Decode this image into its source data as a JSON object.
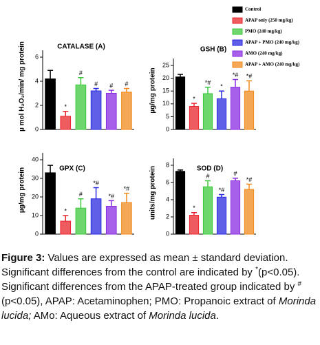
{
  "legend": [
    {
      "name": "Control",
      "color": "#000000"
    },
    {
      "name": "APAP only (250 mg/kg)",
      "color": "#e8262b"
    },
    {
      "name": "PMO (240 mg/kg)",
      "color": "#3cc83c"
    },
    {
      "name": "APAP + PMO (240 mg/kg)",
      "color": "#2a2ae0"
    },
    {
      "name": "AMO (240 mg/kg)",
      "color": "#8a2be2"
    },
    {
      "name": "APAP + AMO (240 mg/kg)",
      "color": "#f08a1c"
    }
  ],
  "chart_data": [
    {
      "type": "bar",
      "title": "CATALASE (A)",
      "y_label": "µ mol H₂O₂/min/ mg protein",
      "values": [
        4.2,
        1.1,
        3.7,
        3.2,
        3.0,
        3.1
      ],
      "errors": [
        0.7,
        0.4,
        0.6,
        0.2,
        0.25,
        0.3
      ],
      "significance": [
        null,
        "*",
        "#",
        "#",
        "#",
        "#"
      ],
      "ylim": [
        0,
        6
      ],
      "yticks": [
        0,
        2,
        4,
        6
      ]
    },
    {
      "type": "bar",
      "title": "GSH (B)",
      "y_label": "µg/mg protein",
      "values": [
        20.5,
        9,
        14,
        12,
        16.5,
        15
      ],
      "errors": [
        1,
        1.2,
        2.5,
        3,
        3,
        4
      ],
      "significance": [
        null,
        "*",
        "*#",
        "*",
        "*#",
        "*#"
      ],
      "ylim": [
        0,
        25
      ],
      "yticks": [
        0,
        5,
        10,
        15,
        20,
        25
      ]
    },
    {
      "type": "bar",
      "title": "GPX (C)",
      "y_label": "µg/mg protein",
      "values": [
        33,
        7,
        14,
        19,
        15,
        17
      ],
      "errors": [
        4,
        3,
        5,
        6,
        3,
        5
      ],
      "significance": [
        null,
        "*",
        "#",
        "*#",
        "*#",
        "*#"
      ],
      "ylim": [
        0,
        40
      ],
      "yticks": [
        0,
        10,
        20,
        30,
        40
      ]
    },
    {
      "type": "bar",
      "title": "SOD (D)",
      "y_label": "units/mg protein",
      "values": [
        7.3,
        2.2,
        5.5,
        4.3,
        6.2,
        5.2
      ],
      "errors": [
        0.15,
        0.3,
        0.7,
        0.3,
        0.3,
        0.6
      ],
      "significance": [
        null,
        "*",
        "#",
        "*#",
        "#",
        "*#"
      ],
      "ylim": [
        0,
        8
      ],
      "yticks": [
        0,
        2,
        4,
        6,
        8
      ]
    }
  ],
  "caption": [
    {
      "text": "Figure 3:",
      "style": "bold"
    },
    {
      "text": " Values are expressed as mean ± standard deviation. Significant differences from the control are indicated by ",
      "style": "normal"
    },
    {
      "text": "*",
      "style": "sup"
    },
    {
      "text": "(p<0.05). Significant differences from the APAP-treated group indicated by ",
      "style": "normal"
    },
    {
      "text": "#",
      "style": "sup"
    },
    {
      "text": "(p<0.05), APAP: Acetaminophen; PMO: Propanoic extract of ",
      "style": "normal"
    },
    {
      "text": "Morinda lucida;",
      "style": "italic"
    },
    {
      "text": " AMo: Aqueous extract of ",
      "style": "normal"
    },
    {
      "text": "Morinda lucida",
      "style": "italic"
    },
    {
      "text": ".",
      "style": "normal"
    }
  ]
}
